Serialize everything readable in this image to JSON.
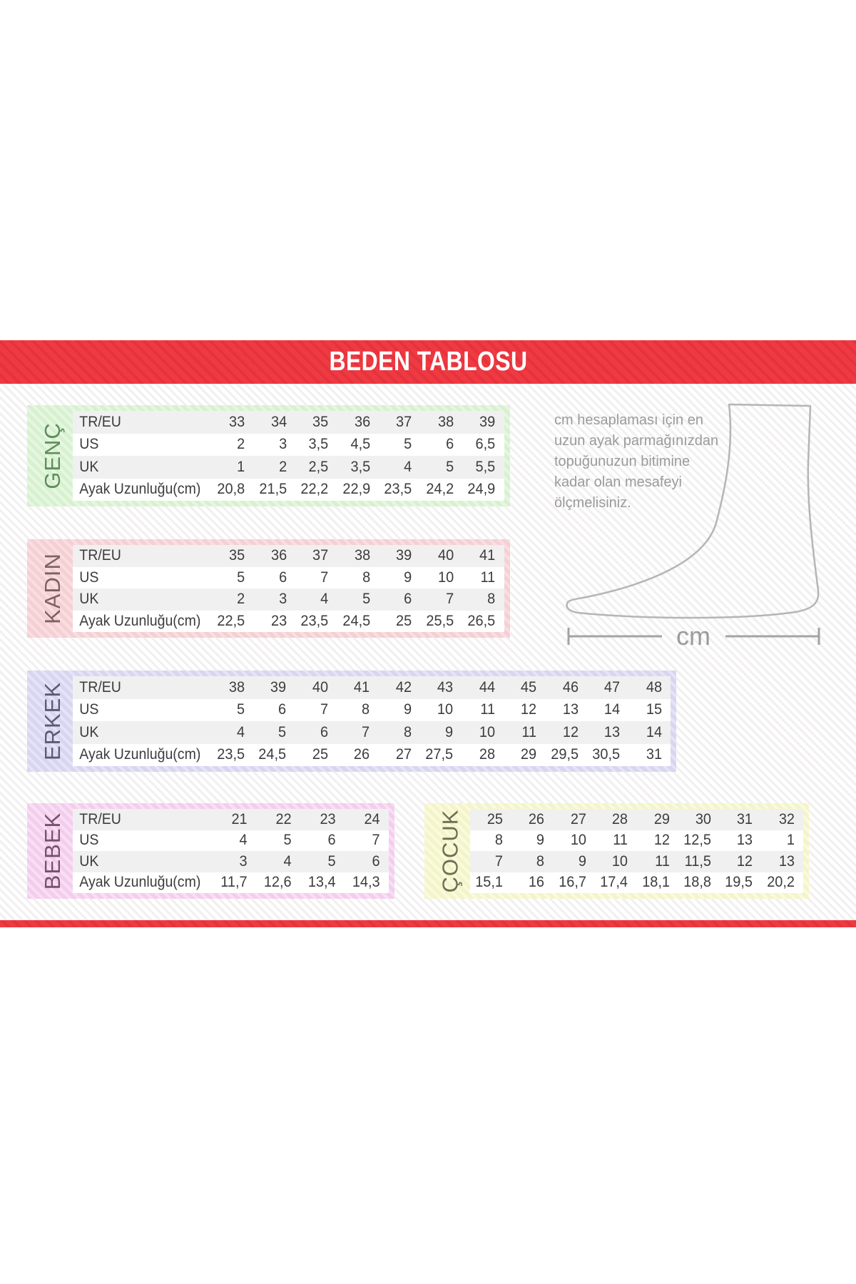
{
  "title": "BEDEN TABLOSU",
  "measure_note": {
    "lines": [
      "cm hesaplaması için en",
      "uzun ayak parmağınızdan",
      "topuğunuzun bitimine",
      "kadar olan mesafeyi",
      "ölçmelisiniz."
    ]
  },
  "foot_diagram": {
    "unit_label": "cm"
  },
  "colors": {
    "header_red": "#ee3a42",
    "header_red_stripe": "#e7323b",
    "row_alt_gray": "#f0f0f0",
    "value_text": "#3d3d3d",
    "note_gray": "#9b9b9b",
    "foot_outline_gray": "#b5b5b5"
  },
  "size_tables": [
    {
      "id": "genc",
      "label": "GENÇ",
      "theme": {
        "base": "#d7f1d0",
        "stripe": "#e6f7e0",
        "text": "#5f8d5c"
      },
      "row_labels": [
        "TR/EU",
        "US",
        "UK",
        "Ayak Uzunluğu(cm)"
      ],
      "rows": [
        [
          "33",
          "34",
          "35",
          "36",
          "37",
          "38",
          "39"
        ],
        [
          "2",
          "3",
          "3,5",
          "4,5",
          "5",
          "6",
          "6,5"
        ],
        [
          "1",
          "2",
          "2,5",
          "3,5",
          "4",
          "5",
          "5,5"
        ],
        [
          "20,8",
          "21,5",
          "22,2",
          "22,9",
          "23,5",
          "24,2",
          "24,9"
        ]
      ]
    },
    {
      "id": "kadin",
      "label": "KADIN",
      "theme": {
        "base": "#f4cfd3",
        "stripe": "#f9dee1",
        "text": "#7c6165"
      },
      "row_labels": [
        "TR/EU",
        "US",
        "UK",
        "Ayak Uzunluğu(cm)"
      ],
      "rows": [
        [
          "35",
          "36",
          "37",
          "38",
          "39",
          "40",
          "41"
        ],
        [
          "5",
          "6",
          "7",
          "8",
          "9",
          "10",
          "11"
        ],
        [
          "2",
          "3",
          "4",
          "5",
          "6",
          "7",
          "8"
        ],
        [
          "22,5",
          "23",
          "23,5",
          "24,5",
          "25",
          "25,5",
          "26,5"
        ]
      ]
    },
    {
      "id": "erkek",
      "label": "ERKEK",
      "theme": {
        "base": "#d7d5f0",
        "stripe": "#e5e3f7",
        "text": "#5b5a74"
      },
      "row_labels": [
        "TR/EU",
        "US",
        "UK",
        "Ayak Uzunluğu(cm)"
      ],
      "rows": [
        [
          "38",
          "39",
          "40",
          "41",
          "42",
          "43",
          "44",
          "45",
          "46",
          "47",
          "48"
        ],
        [
          "5",
          "6",
          "7",
          "8",
          "9",
          "10",
          "11",
          "12",
          "13",
          "14",
          "15"
        ],
        [
          "4",
          "5",
          "6",
          "7",
          "8",
          "9",
          "10",
          "11",
          "12",
          "13",
          "14"
        ],
        [
          "23,5",
          "24,5",
          "25",
          "26",
          "27",
          "27,5",
          "28",
          "29",
          "29,5",
          "30,5",
          "31"
        ]
      ]
    },
    {
      "id": "bebek",
      "label": "BEBEK",
      "theme": {
        "base": "#f3cdec",
        "stripe": "#f9def5",
        "text": "#77516f"
      },
      "row_labels": [
        "TR/EU",
        "US",
        "UK",
        "Ayak Uzunluğu(cm)"
      ],
      "rows": [
        [
          "21",
          "22",
          "23",
          "24"
        ],
        [
          "4",
          "5",
          "6",
          "7"
        ],
        [
          "3",
          "4",
          "5",
          "6"
        ],
        [
          "11,7",
          "12,6",
          "13,4",
          "14,3"
        ]
      ]
    },
    {
      "id": "cocuk",
      "label": "ÇOCUK",
      "theme": {
        "base": "#f4f4c9",
        "stripe": "#fafade",
        "text": "#6e6e54"
      },
      "row_labels": null,
      "rows": [
        [
          "25",
          "26",
          "27",
          "28",
          "29",
          "30",
          "31",
          "32"
        ],
        [
          "8",
          "9",
          "10",
          "11",
          "12",
          "12,5",
          "13",
          "1"
        ],
        [
          "7",
          "8",
          "9",
          "10",
          "11",
          "11,5",
          "12",
          "13"
        ],
        [
          "15,1",
          "16",
          "16,7",
          "17,4",
          "18,1",
          "18,8",
          "19,5",
          "20,2"
        ]
      ]
    }
  ]
}
